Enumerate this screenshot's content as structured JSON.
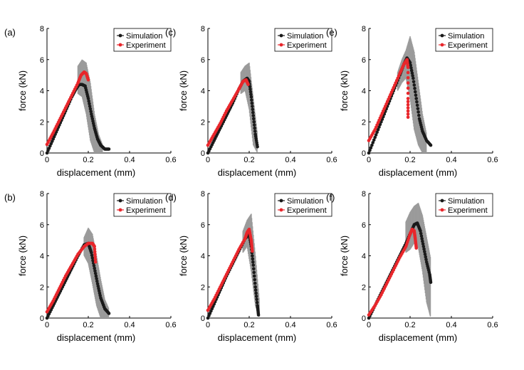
{
  "chart_data": [
    {
      "panel_label": "(a)",
      "type": "scatter",
      "xlabel": "displacement (mm)",
      "ylabel": "force (kN)",
      "xlim": [
        0,
        0.6
      ],
      "ylim": [
        0,
        8
      ],
      "xticks": [
        "0",
        "0.2",
        "0.4",
        "0.6"
      ],
      "yticks": [
        "0",
        "2",
        "4",
        "6",
        "8"
      ],
      "legend": {
        "position": "top-right",
        "entries": [
          "Simulation",
          "Experiment"
        ]
      },
      "colors": {
        "simulation": "#1a1a1a",
        "experiment": "#e8262b",
        "scatter_band": "#9b9b9b"
      },
      "series": [
        {
          "name": "Simulation",
          "x": [
            0,
            0.03,
            0.06,
            0.09,
            0.12,
            0.14,
            0.155,
            0.17,
            0.185,
            0.2,
            0.215,
            0.23,
            0.245,
            0.26,
            0.28,
            0.3
          ],
          "y": [
            0,
            0.9,
            1.8,
            2.7,
            3.6,
            4.1,
            4.4,
            4.4,
            4.3,
            3.5,
            2.5,
            1.6,
            0.9,
            0.5,
            0.25,
            0.25
          ]
        },
        {
          "name": "Experiment",
          "x": [
            0,
            0.03,
            0.06,
            0.09,
            0.12,
            0.15,
            0.165,
            0.18,
            0.19,
            0.2
          ],
          "y": [
            0.55,
            1.3,
            2.1,
            2.9,
            3.7,
            4.5,
            5.0,
            5.2,
            5.1,
            4.7
          ]
        }
      ],
      "band": {
        "x": [
          0.15,
          0.17,
          0.19,
          0.21,
          0.23,
          0.25,
          0.27
        ],
        "upper": [
          5.6,
          6.0,
          5.8,
          4.5,
          2.5,
          1.2,
          0.5
        ],
        "lower": [
          3.8,
          3.6,
          2.5,
          0.8,
          0.0,
          0.0,
          0.0
        ]
      }
    },
    {
      "panel_label": "(c)",
      "type": "scatter",
      "xlabel": "displacement (mm)",
      "ylabel": "force (kN)",
      "xlim": [
        0,
        0.6
      ],
      "ylim": [
        0,
        8
      ],
      "xticks": [
        "0",
        "0.2",
        "0.4",
        "0.6"
      ],
      "yticks": [
        "0",
        "2",
        "4",
        "6",
        "8"
      ],
      "legend": {
        "position": "top-right",
        "entries": [
          "Simulation",
          "Experiment"
        ]
      },
      "colors": {
        "simulation": "#1a1a1a",
        "experiment": "#e8262b",
        "scatter_band": "#9b9b9b"
      },
      "series": [
        {
          "name": "Simulation",
          "x": [
            0,
            0.03,
            0.06,
            0.09,
            0.12,
            0.15,
            0.17,
            0.19,
            0.2,
            0.21,
            0.22,
            0.23,
            0.24
          ],
          "y": [
            0,
            0.8,
            1.6,
            2.4,
            3.2,
            4.1,
            4.6,
            4.8,
            4.6,
            3.6,
            2.4,
            1.2,
            0.4
          ]
        },
        {
          "name": "Experiment",
          "x": [
            0,
            0.03,
            0.06,
            0.09,
            0.12,
            0.15,
            0.17,
            0.185,
            0.195
          ],
          "y": [
            0.5,
            1.2,
            1.9,
            2.7,
            3.4,
            4.1,
            4.6,
            4.7,
            4.4
          ]
        }
      ],
      "band": {
        "x": [
          0.16,
          0.18,
          0.2,
          0.22,
          0.24
        ],
        "upper": [
          5.2,
          5.6,
          5.8,
          3.5,
          1.2
        ],
        "lower": [
          3.8,
          4.0,
          2.8,
          0.5,
          0.0
        ]
      }
    },
    {
      "panel_label": "(e)",
      "type": "scatter",
      "xlabel": "displacement (mm)",
      "ylabel": "force (kN)",
      "xlim": [
        0,
        0.6
      ],
      "ylim": [
        0,
        8
      ],
      "xticks": [
        "0",
        "0.2",
        "0.4",
        "0.6"
      ],
      "yticks": [
        "0",
        "2",
        "4",
        "6",
        "8"
      ],
      "legend": {
        "position": "top-right",
        "entries": [
          "Simulation",
          "Experiment"
        ]
      },
      "colors": {
        "simulation": "#1a1a1a",
        "experiment": "#e8262b",
        "scatter_band": "#9b9b9b"
      },
      "series": [
        {
          "name": "Simulation",
          "x": [
            0,
            0.03,
            0.06,
            0.09,
            0.12,
            0.15,
            0.17,
            0.185,
            0.2,
            0.215,
            0.23,
            0.245,
            0.26,
            0.28,
            0.3
          ],
          "y": [
            0,
            1.0,
            2.0,
            3.0,
            4.0,
            5.0,
            5.7,
            6.1,
            5.8,
            4.8,
            3.5,
            2.2,
            1.4,
            0.8,
            0.5
          ]
        },
        {
          "name": "Experiment",
          "x": [
            0,
            0.03,
            0.06,
            0.09,
            0.12,
            0.15,
            0.17,
            0.185,
            0.19,
            0.19,
            0.19
          ],
          "y": [
            0.8,
            1.5,
            2.4,
            3.3,
            4.2,
            5.1,
            5.7,
            6.0,
            5.5,
            3.5,
            2.3
          ]
        }
      ],
      "band": {
        "x": [
          0.14,
          0.16,
          0.18,
          0.2,
          0.22,
          0.24,
          0.26,
          0.28
        ],
        "upper": [
          5.2,
          6.0,
          6.6,
          7.5,
          6.5,
          4.5,
          2.5,
          1.2
        ],
        "lower": [
          4.0,
          4.5,
          4.8,
          3.5,
          1.5,
          0.5,
          0.0,
          0.0
        ]
      }
    },
    {
      "panel_label": "(b)",
      "type": "scatter",
      "xlabel": "displacement (mm)",
      "ylabel": "force (kN)",
      "xlim": [
        0,
        0.6
      ],
      "ylim": [
        0,
        8
      ],
      "xticks": [
        "0",
        "0.2",
        "0.4",
        "0.6"
      ],
      "yticks": [
        "0",
        "2",
        "4",
        "6",
        "8"
      ],
      "legend": {
        "position": "top-right",
        "entries": [
          "Simulation",
          "Experiment"
        ]
      },
      "colors": {
        "simulation": "#1a1a1a",
        "experiment": "#e8262b",
        "scatter_band": "#9b9b9b"
      },
      "series": [
        {
          "name": "Simulation",
          "x": [
            0,
            0.03,
            0.06,
            0.09,
            0.12,
            0.15,
            0.18,
            0.2,
            0.215,
            0.23,
            0.245,
            0.26,
            0.28,
            0.3
          ],
          "y": [
            0,
            0.8,
            1.6,
            2.4,
            3.2,
            4.0,
            4.7,
            4.8,
            4.2,
            3.2,
            2.2,
            1.3,
            0.6,
            0.3
          ]
        },
        {
          "name": "Experiment",
          "x": [
            0,
            0.03,
            0.06,
            0.09,
            0.12,
            0.15,
            0.18,
            0.2,
            0.22,
            0.23,
            0.235
          ],
          "y": [
            0.4,
            1.1,
            1.9,
            2.7,
            3.4,
            4.1,
            4.6,
            4.8,
            4.8,
            4.6,
            3.6
          ]
        }
      ],
      "band": {
        "x": [
          0.18,
          0.2,
          0.22,
          0.24,
          0.26,
          0.28,
          0.3
        ],
        "upper": [
          5.2,
          5.8,
          5.4,
          4.0,
          2.5,
          1.2,
          0.6
        ],
        "lower": [
          4.0,
          3.5,
          2.2,
          0.8,
          0.0,
          0.0,
          0.0
        ]
      }
    },
    {
      "panel_label": "(d)",
      "type": "scatter",
      "xlabel": "displacement (mm)",
      "ylabel": "force (kN)",
      "xlim": [
        0,
        0.6
      ],
      "ylim": [
        0,
        8
      ],
      "xticks": [
        "0",
        "0.2",
        "0.4",
        "0.6"
      ],
      "yticks": [
        "0",
        "2",
        "4",
        "6",
        "8"
      ],
      "legend": {
        "position": "top-right",
        "entries": [
          "Simulation",
          "Experiment"
        ]
      },
      "colors": {
        "simulation": "#1a1a1a",
        "experiment": "#e8262b",
        "scatter_band": "#9b9b9b"
      },
      "series": [
        {
          "name": "Simulation",
          "x": [
            0,
            0.03,
            0.06,
            0.09,
            0.12,
            0.15,
            0.18,
            0.2,
            0.21,
            0.22,
            0.23,
            0.24,
            0.245
          ],
          "y": [
            0,
            0.9,
            1.8,
            2.7,
            3.5,
            4.3,
            5.1,
            5.4,
            4.6,
            3.4,
            2.0,
            0.8,
            0.2
          ]
        },
        {
          "name": "Experiment",
          "x": [
            0,
            0.03,
            0.06,
            0.09,
            0.12,
            0.15,
            0.18,
            0.19,
            0.2,
            0.21,
            0.215
          ],
          "y": [
            0.5,
            1.2,
            2.0,
            2.8,
            3.6,
            4.4,
            5.1,
            5.5,
            5.7,
            5.0,
            4.3
          ]
        }
      ],
      "band": {
        "x": [
          0.17,
          0.19,
          0.21,
          0.23,
          0.25
        ],
        "upper": [
          5.6,
          6.3,
          6.7,
          4.0,
          1.0
        ],
        "lower": [
          4.2,
          4.6,
          3.0,
          0.8,
          0.0
        ]
      }
    },
    {
      "panel_label": "(f)",
      "type": "scatter",
      "xlabel": "displacement (mm)",
      "ylabel": "force (kN)",
      "xlim": [
        0,
        0.6
      ],
      "ylim": [
        0,
        8
      ],
      "xticks": [
        "0",
        "0.2",
        "0.4",
        "0.6"
      ],
      "yticks": [
        "0",
        "2",
        "4",
        "6",
        "8"
      ],
      "legend": {
        "position": "top-right",
        "entries": [
          "Simulation",
          "Experiment"
        ]
      },
      "colors": {
        "simulation": "#1a1a1a",
        "experiment": "#e8262b",
        "scatter_band": "#9b9b9b"
      },
      "series": [
        {
          "name": "Simulation",
          "x": [
            0,
            0.03,
            0.06,
            0.09,
            0.12,
            0.15,
            0.18,
            0.2,
            0.22,
            0.235,
            0.25,
            0.265,
            0.28,
            0.295,
            0.3
          ],
          "y": [
            0,
            0.8,
            1.6,
            2.4,
            3.2,
            4.0,
            4.8,
            5.4,
            6.0,
            6.1,
            5.6,
            4.6,
            3.6,
            2.8,
            2.3
          ]
        },
        {
          "name": "Experiment",
          "x": [
            0,
            0.03,
            0.06,
            0.09,
            0.12,
            0.15,
            0.18,
            0.2,
            0.21,
            0.22,
            0.225,
            0.23
          ],
          "y": [
            0.2,
            0.8,
            1.5,
            2.3,
            3.1,
            3.9,
            4.6,
            5.4,
            5.7,
            5.6,
            5.1,
            4.5
          ]
        }
      ],
      "band": {
        "x": [
          0.18,
          0.2,
          0.22,
          0.24,
          0.26,
          0.28,
          0.3
        ],
        "upper": [
          6.2,
          6.8,
          7.2,
          7.4,
          6.6,
          5.2,
          3.8
        ],
        "lower": [
          4.2,
          4.4,
          4.8,
          4.5,
          3.0,
          1.0,
          0.0
        ]
      }
    }
  ]
}
